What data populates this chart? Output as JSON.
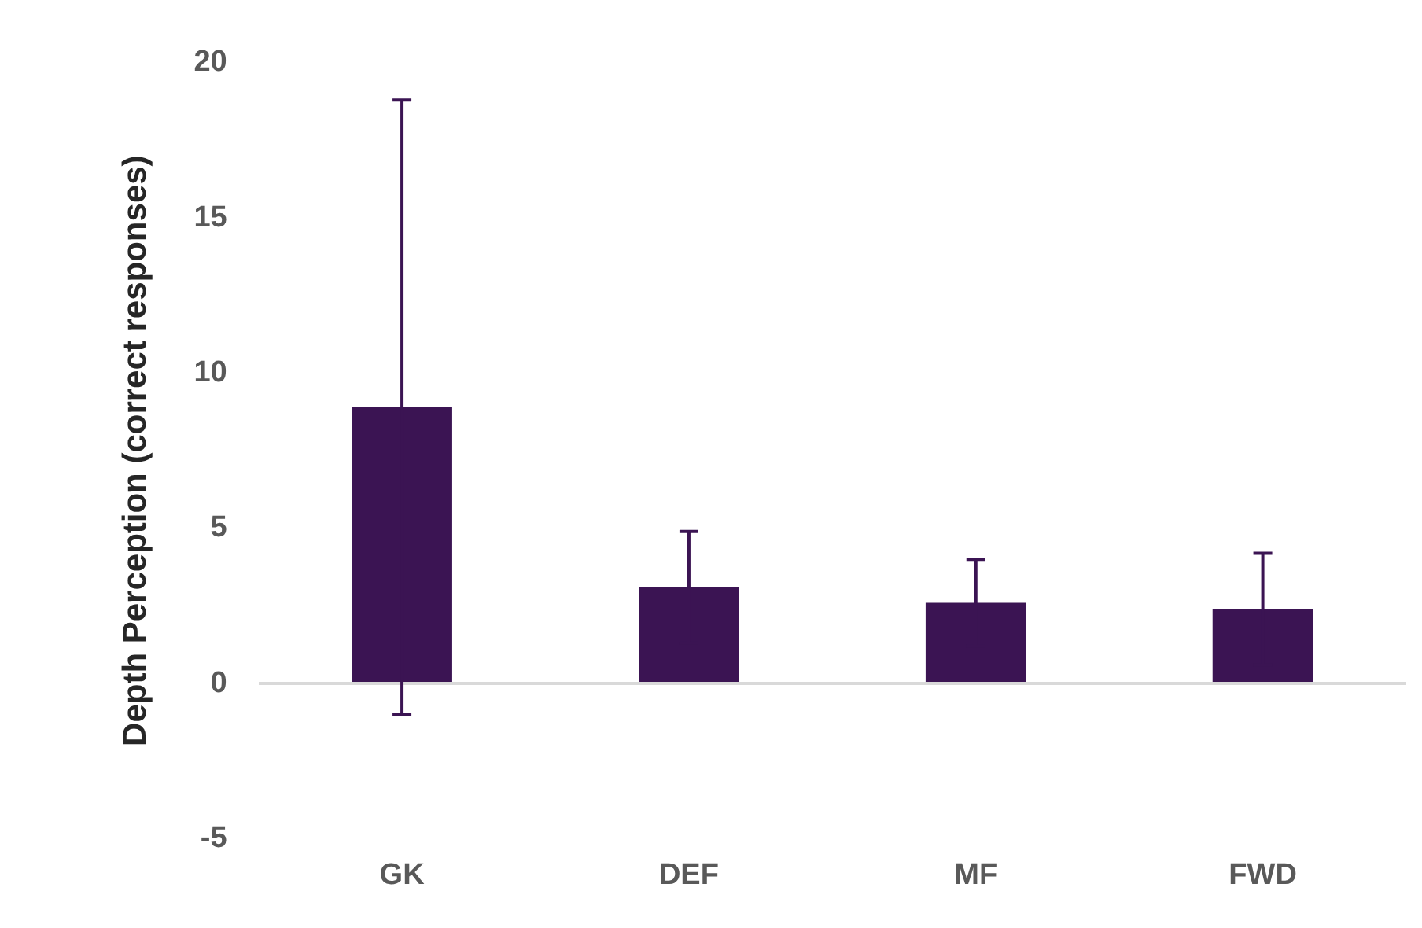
{
  "chart_data": {
    "type": "bar",
    "ylabel": "Depth Perception (correct responses)",
    "categories": [
      "GK",
      "DEF",
      "MF",
      "FWD"
    ],
    "values": [
      8.9,
      3.1,
      2.6,
      2.4
    ],
    "errors": [
      9.9,
      1.8,
      1.4,
      1.8
    ],
    "color": "#3b1453",
    "ylim": [
      -5,
      20
    ],
    "yticks": [
      -5,
      0,
      5,
      10,
      15,
      20
    ],
    "grid": false,
    "legend": false
  }
}
